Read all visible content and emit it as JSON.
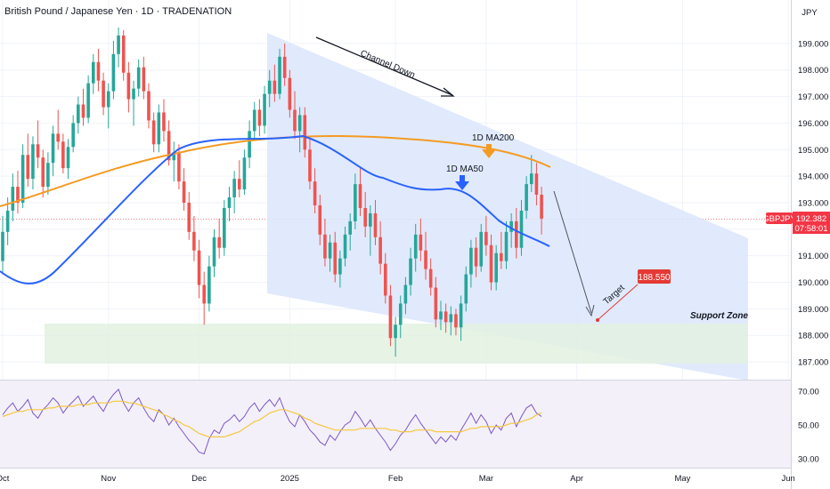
{
  "header": {
    "title": "British Pound / Japanese Yen · 1D · TRADENATION",
    "currency": "JPY"
  },
  "colors": {
    "up": "#26a69a",
    "down": "#ef5350",
    "ma50": "#2962ff",
    "ma200": "#f59a23",
    "channel": "#dbe6fb",
    "support": "#e2f1e0",
    "rsi_line": "#7e57c2",
    "rsi_ma": "#f5c842",
    "price_tag": "#f23645",
    "target_tag": "#e53935"
  },
  "chart_data": [
    {
      "type": "candlestick",
      "symbol": "GBPJPY",
      "ylim": [
        186.4,
        199.8
      ],
      "y_ticks": [
        "199.000",
        "198.000",
        "197.000",
        "196.000",
        "195.000",
        "194.000",
        "193.000",
        "192.000",
        "191.000",
        "190.000",
        "189.000",
        "188.000",
        "187.000"
      ],
      "x_ticks": [
        "Oct",
        "Nov",
        "Dec",
        "2025",
        "Feb",
        "Mar",
        "Apr",
        "May",
        "Jun"
      ],
      "last_price": "192.382",
      "countdown": "07:58:01",
      "ohlc": [
        [
          190.8,
          192.5,
          190.3,
          191.9
        ],
        [
          191.9,
          193.2,
          191.4,
          192.7
        ],
        [
          192.7,
          194.1,
          192.3,
          193.6
        ],
        [
          193.6,
          194.2,
          192.6,
          193.0
        ],
        [
          193.0,
          195.2,
          192.8,
          194.8
        ],
        [
          194.8,
          195.6,
          193.6,
          193.9
        ],
        [
          193.9,
          195.5,
          193.5,
          195.2
        ],
        [
          195.2,
          196.1,
          194.3,
          194.7
        ],
        [
          194.7,
          195.0,
          193.2,
          193.6
        ],
        [
          193.6,
          194.9,
          193.3,
          194.5
        ],
        [
          194.5,
          195.9,
          194.0,
          195.6
        ],
        [
          195.6,
          196.5,
          195.0,
          195.3
        ],
        [
          195.3,
          195.6,
          194.1,
          194.3
        ],
        [
          194.3,
          195.4,
          193.9,
          195.1
        ],
        [
          195.1,
          196.3,
          194.9,
          196.0
        ],
        [
          196.0,
          197.0,
          195.6,
          196.7
        ],
        [
          196.7,
          197.3,
          195.9,
          196.2
        ],
        [
          196.2,
          197.8,
          196.0,
          197.5
        ],
        [
          197.5,
          198.6,
          197.1,
          198.3
        ],
        [
          198.3,
          198.8,
          197.2,
          197.6
        ],
        [
          197.6,
          197.9,
          196.3,
          196.6
        ],
        [
          196.6,
          197.5,
          195.8,
          197.2
        ],
        [
          197.2,
          199.1,
          196.9,
          198.6
        ],
        [
          198.6,
          199.6,
          198.1,
          199.3
        ],
        [
          199.3,
          199.5,
          197.6,
          197.9
        ],
        [
          197.9,
          198.3,
          196.4,
          196.9
        ],
        [
          196.9,
          197.6,
          195.9,
          197.3
        ],
        [
          197.3,
          198.4,
          197.0,
          198.1
        ],
        [
          198.1,
          198.5,
          196.9,
          197.2
        ],
        [
          197.2,
          197.5,
          195.8,
          196.1
        ],
        [
          196.1,
          196.4,
          194.9,
          195.2
        ],
        [
          195.2,
          196.7,
          194.9,
          196.4
        ],
        [
          196.4,
          196.9,
          195.3,
          195.7
        ],
        [
          195.7,
          196.1,
          194.4,
          194.6
        ],
        [
          194.6,
          195.3,
          193.8,
          194.9
        ],
        [
          194.9,
          195.2,
          193.5,
          193.8
        ],
        [
          193.8,
          194.3,
          192.7,
          193.0
        ],
        [
          193.0,
          193.4,
          191.6,
          191.9
        ],
        [
          191.9,
          192.5,
          190.8,
          191.2
        ],
        [
          191.2,
          191.6,
          189.4,
          189.9
        ],
        [
          189.9,
          190.4,
          188.4,
          189.2
        ],
        [
          189.2,
          191.0,
          188.9,
          190.6
        ],
        [
          190.6,
          192.0,
          190.2,
          191.7
        ],
        [
          191.7,
          192.4,
          190.9,
          191.3
        ],
        [
          191.3,
          193.1,
          191.0,
          192.8
        ],
        [
          192.8,
          193.6,
          192.3,
          193.2
        ],
        [
          193.2,
          194.2,
          192.6,
          193.9
        ],
        [
          193.9,
          194.6,
          193.2,
          193.5
        ],
        [
          193.5,
          195.0,
          193.3,
          194.7
        ],
        [
          194.7,
          196.1,
          194.3,
          195.7
        ],
        [
          195.7,
          196.8,
          195.4,
          196.5
        ],
        [
          196.5,
          196.9,
          195.5,
          195.9
        ],
        [
          195.9,
          197.4,
          195.6,
          197.1
        ],
        [
          197.1,
          198.0,
          196.6,
          197.6
        ],
        [
          197.6,
          198.2,
          196.8,
          197.1
        ],
        [
          197.1,
          198.8,
          196.9,
          198.5
        ],
        [
          198.5,
          199.0,
          197.4,
          197.7
        ],
        [
          197.7,
          198.0,
          196.2,
          196.5
        ],
        [
          196.5,
          197.2,
          195.4,
          195.7
        ],
        [
          195.7,
          196.6,
          194.9,
          196.3
        ],
        [
          196.3,
          196.6,
          194.7,
          195.0
        ],
        [
          195.0,
          195.4,
          193.5,
          193.8
        ],
        [
          193.8,
          194.3,
          192.6,
          192.9
        ],
        [
          192.9,
          193.3,
          191.4,
          191.8
        ],
        [
          191.8,
          192.4,
          190.6,
          190.9
        ],
        [
          190.9,
          191.8,
          190.4,
          191.5
        ],
        [
          191.5,
          191.9,
          190.0,
          190.3
        ],
        [
          190.3,
          191.2,
          189.8,
          190.9
        ],
        [
          190.9,
          192.1,
          190.6,
          191.8
        ],
        [
          191.8,
          192.6,
          191.2,
          192.3
        ],
        [
          192.3,
          194.1,
          192.0,
          193.7
        ],
        [
          193.7,
          194.3,
          192.5,
          192.8
        ],
        [
          192.8,
          193.4,
          191.7,
          192.1
        ],
        [
          192.1,
          192.9,
          191.0,
          192.6
        ],
        [
          192.6,
          193.1,
          191.4,
          191.7
        ],
        [
          191.7,
          192.3,
          190.3,
          190.7
        ],
        [
          190.7,
          191.1,
          189.2,
          189.5
        ],
        [
          189.5,
          189.9,
          187.6,
          187.9
        ],
        [
          187.9,
          188.7,
          187.2,
          188.4
        ],
        [
          188.4,
          189.5,
          187.9,
          189.2
        ],
        [
          189.2,
          190.2,
          188.8,
          189.9
        ],
        [
          189.9,
          191.3,
          189.5,
          190.9
        ],
        [
          190.9,
          192.2,
          190.4,
          191.8
        ],
        [
          191.8,
          192.4,
          190.8,
          191.2
        ],
        [
          191.2,
          191.9,
          190.1,
          190.5
        ],
        [
          190.5,
          190.9,
          189.5,
          189.8
        ],
        [
          189.8,
          190.2,
          188.3,
          188.6
        ],
        [
          188.6,
          189.3,
          188.2,
          188.9
        ],
        [
          188.9,
          189.2,
          188.1,
          188.5
        ],
        [
          188.5,
          189.1,
          188.0,
          188.8
        ],
        [
          188.8,
          189.0,
          188.0,
          188.3
        ],
        [
          188.3,
          189.5,
          187.8,
          189.2
        ],
        [
          189.2,
          190.6,
          188.9,
          190.3
        ],
        [
          190.3,
          191.6,
          189.8,
          191.3
        ],
        [
          191.3,
          191.7,
          190.2,
          190.6
        ],
        [
          190.6,
          192.2,
          190.4,
          191.9
        ],
        [
          191.9,
          192.5,
          191.0,
          191.4
        ],
        [
          191.4,
          191.8,
          189.7,
          190.0
        ],
        [
          190.0,
          191.4,
          189.7,
          191.1
        ],
        [
          191.1,
          191.9,
          190.5,
          190.8
        ],
        [
          190.8,
          192.3,
          190.5,
          191.9
        ],
        [
          191.9,
          192.6,
          191.3,
          192.3
        ],
        [
          192.3,
          192.8,
          190.9,
          191.3
        ],
        [
          191.3,
          193.1,
          191.0,
          192.7
        ],
        [
          192.7,
          194.0,
          192.4,
          193.7
        ],
        [
          193.7,
          194.8,
          193.4,
          194.1
        ],
        [
          194.1,
          194.5,
          192.9,
          193.3
        ],
        [
          193.3,
          193.6,
          191.8,
          192.4
        ]
      ]
    },
    {
      "type": "line",
      "name": "RSI",
      "ylim": [
        28,
        72
      ],
      "y_ticks": [
        "70.00",
        "50.00",
        "30.00"
      ],
      "series": [
        {
          "values": [
            56,
            60,
            63,
            58,
            61,
            65,
            57,
            54,
            59,
            62,
            66,
            63,
            57,
            61,
            64,
            67,
            61,
            64,
            67,
            62,
            58,
            64,
            68,
            71,
            63,
            58,
            63,
            66,
            60,
            55,
            52,
            59,
            56,
            50,
            54,
            49,
            45,
            41,
            38,
            34,
            33,
            42,
            47,
            45,
            51,
            53,
            56,
            52,
            55,
            60,
            63,
            58,
            62,
            65,
            61,
            66,
            58,
            52,
            49,
            56,
            52,
            47,
            44,
            40,
            38,
            44,
            41,
            46,
            50,
            52,
            58,
            54,
            49,
            53,
            48,
            44,
            40,
            35,
            39,
            44,
            47,
            52,
            56,
            51,
            47,
            43,
            39,
            43,
            40,
            44,
            41,
            47,
            52,
            57,
            51,
            56,
            52,
            45,
            50,
            47,
            54,
            57,
            49,
            55,
            60,
            62,
            57,
            55
          ]
        },
        {
          "values": [
            55,
            56,
            57,
            58,
            58,
            59,
            59,
            59,
            59,
            60,
            60,
            61,
            61,
            61,
            61,
            62,
            62,
            62,
            63,
            63,
            63,
            63,
            64,
            64,
            64,
            63,
            63,
            62,
            61,
            60,
            59,
            58,
            56,
            55,
            53,
            52,
            50,
            49,
            47,
            45,
            44,
            43,
            43,
            43,
            43,
            44,
            45,
            46,
            48,
            50,
            52,
            53,
            55,
            57,
            58,
            59,
            59,
            58,
            57,
            56,
            54,
            53,
            51,
            50,
            49,
            48,
            47,
            47,
            47,
            47,
            47,
            48,
            48,
            48,
            48,
            48,
            48,
            47,
            47,
            46,
            46,
            46,
            47,
            47,
            47,
            47,
            46,
            46,
            46,
            46,
            46,
            46,
            47,
            48,
            48,
            49,
            49,
            49,
            49,
            49,
            50,
            51,
            51,
            52,
            53,
            54,
            56,
            57
          ]
        }
      ]
    }
  ],
  "annotations": {
    "channel_label": "Channel Down",
    "ma200_label": "1D MA200",
    "ma50_label": "1D MA50",
    "target_label": "Target",
    "target_value": "188.550",
    "support_label": "Support Zone",
    "ticker_tag": "GBPJPY"
  }
}
